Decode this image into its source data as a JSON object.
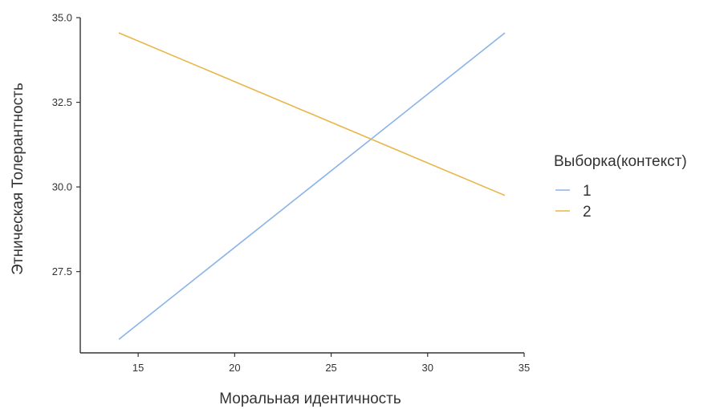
{
  "chart_data": {
    "type": "line",
    "xlabel": "Моральная идентичность",
    "ylabel": "Этническая Толерантность",
    "xlim": [
      12.0,
      35
    ],
    "ylim": [
      25.1,
      35.0
    ],
    "x_ticks": [
      15,
      20,
      25,
      30,
      35
    ],
    "x_tick_labels": [
      "15",
      "20",
      "25",
      "30",
      "35"
    ],
    "y_ticks": [
      27.5,
      30.0,
      32.5,
      35.0
    ],
    "y_tick_labels": [
      "27.5",
      "30.0",
      "32.5",
      "35.0"
    ],
    "grid": false,
    "legend": {
      "title": "Выборка(контекст)",
      "position": "right"
    },
    "series": [
      {
        "name": "1",
        "color": "#8ab4e8",
        "x": [
          14,
          34
        ],
        "y": [
          25.5,
          34.55
        ]
      },
      {
        "name": "2",
        "color": "#e8b548",
        "x": [
          14,
          34
        ],
        "y": [
          34.55,
          29.75
        ]
      }
    ]
  }
}
